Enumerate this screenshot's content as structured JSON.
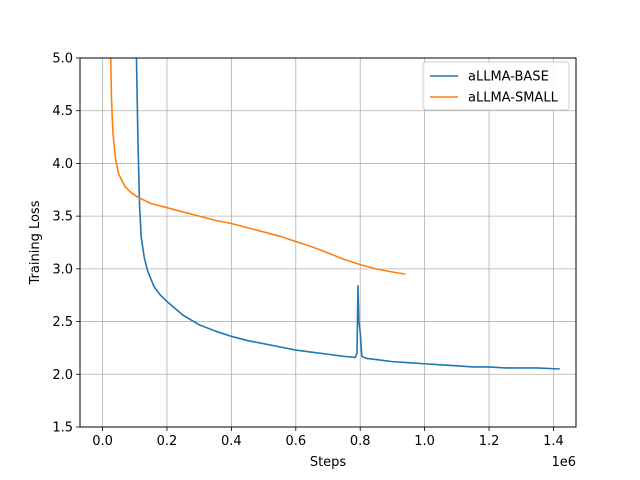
{
  "chart_data": {
    "type": "line",
    "xlabel": "Steps",
    "ylabel": "Training Loss",
    "x_offset_label": "1e6",
    "xlim": [
      -0.07,
      1.47
    ],
    "ylim": [
      1.5,
      5.0
    ],
    "xticks": [
      0.0,
      0.2,
      0.4,
      0.6,
      0.8,
      1.0,
      1.2,
      1.4
    ],
    "xtick_labels": [
      "0.0",
      "0.2",
      "0.4",
      "0.6",
      "0.8",
      "1.0",
      "1.2",
      "1.4"
    ],
    "yticks": [
      1.5,
      2.0,
      2.5,
      3.0,
      3.5,
      4.0,
      4.5,
      5.0
    ],
    "ytick_labels": [
      "1.5",
      "2.0",
      "2.5",
      "3.0",
      "3.5",
      "4.0",
      "4.5",
      "5.0"
    ],
    "grid": true,
    "legend_position": "top-right",
    "series": [
      {
        "name": "aLLMA-BASE",
        "color": "#1f77b4",
        "points": [
          [
            0.105,
            5.05
          ],
          [
            0.11,
            4.2
          ],
          [
            0.115,
            3.6
          ],
          [
            0.12,
            3.3
          ],
          [
            0.13,
            3.1
          ],
          [
            0.14,
            2.98
          ],
          [
            0.16,
            2.83
          ],
          [
            0.18,
            2.75
          ],
          [
            0.2,
            2.69
          ],
          [
            0.25,
            2.56
          ],
          [
            0.3,
            2.47
          ],
          [
            0.35,
            2.41
          ],
          [
            0.4,
            2.36
          ],
          [
            0.45,
            2.32
          ],
          [
            0.5,
            2.29
          ],
          [
            0.55,
            2.26
          ],
          [
            0.6,
            2.23
          ],
          [
            0.65,
            2.21
          ],
          [
            0.7,
            2.19
          ],
          [
            0.75,
            2.17
          ],
          [
            0.785,
            2.16
          ],
          [
            0.79,
            2.2
          ],
          [
            0.793,
            2.84
          ],
          [
            0.796,
            2.5
          ],
          [
            0.8,
            2.4
          ],
          [
            0.805,
            2.17
          ],
          [
            0.82,
            2.15
          ],
          [
            0.85,
            2.14
          ],
          [
            0.9,
            2.12
          ],
          [
            0.95,
            2.11
          ],
          [
            1.0,
            2.1
          ],
          [
            1.05,
            2.09
          ],
          [
            1.1,
            2.08
          ],
          [
            1.15,
            2.07
          ],
          [
            1.2,
            2.07
          ],
          [
            1.25,
            2.06
          ],
          [
            1.3,
            2.06
          ],
          [
            1.35,
            2.06
          ],
          [
            1.42,
            2.05
          ]
        ]
      },
      {
        "name": "aLLMA-SMALL",
        "color": "#ff7f0e",
        "points": [
          [
            0.025,
            5.05
          ],
          [
            0.028,
            4.6
          ],
          [
            0.032,
            4.3
          ],
          [
            0.04,
            4.05
          ],
          [
            0.05,
            3.9
          ],
          [
            0.07,
            3.78
          ],
          [
            0.09,
            3.72
          ],
          [
            0.11,
            3.68
          ],
          [
            0.13,
            3.65
          ],
          [
            0.15,
            3.62
          ],
          [
            0.2,
            3.58
          ],
          [
            0.25,
            3.54
          ],
          [
            0.3,
            3.5
          ],
          [
            0.35,
            3.46
          ],
          [
            0.4,
            3.43
          ],
          [
            0.45,
            3.39
          ],
          [
            0.5,
            3.35
          ],
          [
            0.55,
            3.31
          ],
          [
            0.6,
            3.26
          ],
          [
            0.65,
            3.21
          ],
          [
            0.7,
            3.15
          ],
          [
            0.75,
            3.09
          ],
          [
            0.8,
            3.04
          ],
          [
            0.85,
            3.0
          ],
          [
            0.9,
            2.97
          ],
          [
            0.94,
            2.95
          ]
        ]
      }
    ]
  }
}
